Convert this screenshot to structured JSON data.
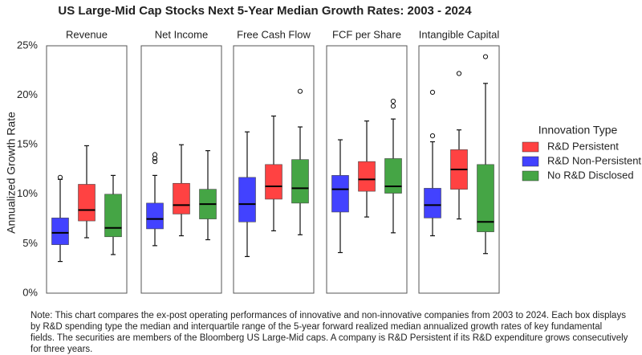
{
  "chart_data": {
    "type": "box",
    "title": "US Large-Mid Cap Stocks Next 5-Year Median Growth Rates: 2003 - 2024",
    "y_label": "Annualized Growth Rate",
    "categories": [
      "Revenue",
      "Net Income",
      "Free Cash Flow",
      "FCF per Share",
      "Intangible Capital"
    ],
    "ylim": [
      0,
      25
    ],
    "yticks": [
      {
        "value": 0,
        "label": "0%"
      },
      {
        "value": 5,
        "label": "5%"
      },
      {
        "value": 10,
        "label": "10%"
      },
      {
        "value": 15,
        "label": "15%"
      },
      {
        "value": 20,
        "label": "20%"
      },
      {
        "value": 25,
        "label": "25%"
      }
    ],
    "legend_title": "Innovation Type",
    "series": [
      {
        "name": "R&D Persistent",
        "color": "#ff4242",
        "whisker_low": [
          5.6,
          5.8,
          6.3,
          7.7,
          7.5
        ],
        "q1": [
          7.3,
          8.0,
          9.5,
          10.3,
          10.5
        ],
        "median": [
          8.4,
          8.9,
          10.8,
          11.5,
          12.5
        ],
        "q3": [
          11.0,
          11.1,
          13.0,
          13.3,
          14.5
        ],
        "whisker_high": [
          14.9,
          15.0,
          17.9,
          17.4,
          16.5
        ],
        "outliers": [
          [],
          [],
          [],
          [],
          [
            22.2
          ]
        ]
      },
      {
        "name": "R&D Non-Persistent",
        "color": "#4242ff",
        "whisker_low": [
          3.2,
          4.8,
          3.7,
          4.1,
          5.8
        ],
        "q1": [
          4.9,
          6.5,
          7.2,
          8.2,
          7.6
        ],
        "median": [
          6.1,
          7.5,
          9.0,
          10.5,
          8.9
        ],
        "q3": [
          7.6,
          9.1,
          11.7,
          11.9,
          10.6
        ],
        "whisker_high": [
          11.5,
          11.9,
          16.3,
          15.5,
          15.3
        ],
        "outliers": [
          [
            11.7
          ],
          [
            14.0,
            13.6,
            13.3
          ],
          [],
          [],
          [
            15.9,
            20.3
          ]
        ]
      },
      {
        "name": "No R&D Disclosed",
        "color": "#45a545",
        "whisker_low": [
          3.9,
          5.4,
          5.9,
          6.1,
          4.0
        ],
        "q1": [
          5.7,
          7.5,
          9.1,
          10.1,
          6.2
        ],
        "median": [
          6.6,
          9.0,
          10.6,
          10.8,
          7.2
        ],
        "q3": [
          10.0,
          10.5,
          13.5,
          13.6,
          13.0
        ],
        "whisker_high": [
          11.9,
          14.4,
          16.8,
          17.6,
          21.2
        ],
        "outliers": [
          [],
          [],
          [
            20.4
          ],
          [
            19.4,
            18.9
          ],
          [
            23.9
          ]
        ]
      }
    ],
    "note": "Note: This chart compares the ex-post operating performances of innovative and non-innovative companies from 2003 to 2024. Each box displays by R&D spending type the median and interquartile range of the 5-year forward realized median annualized growth rates of key fundamental fields. The securities are members of the Bloomberg US Large-Mid caps. A company is R&D Persistent if its R&D expenditure grows consecutively for three years."
  }
}
